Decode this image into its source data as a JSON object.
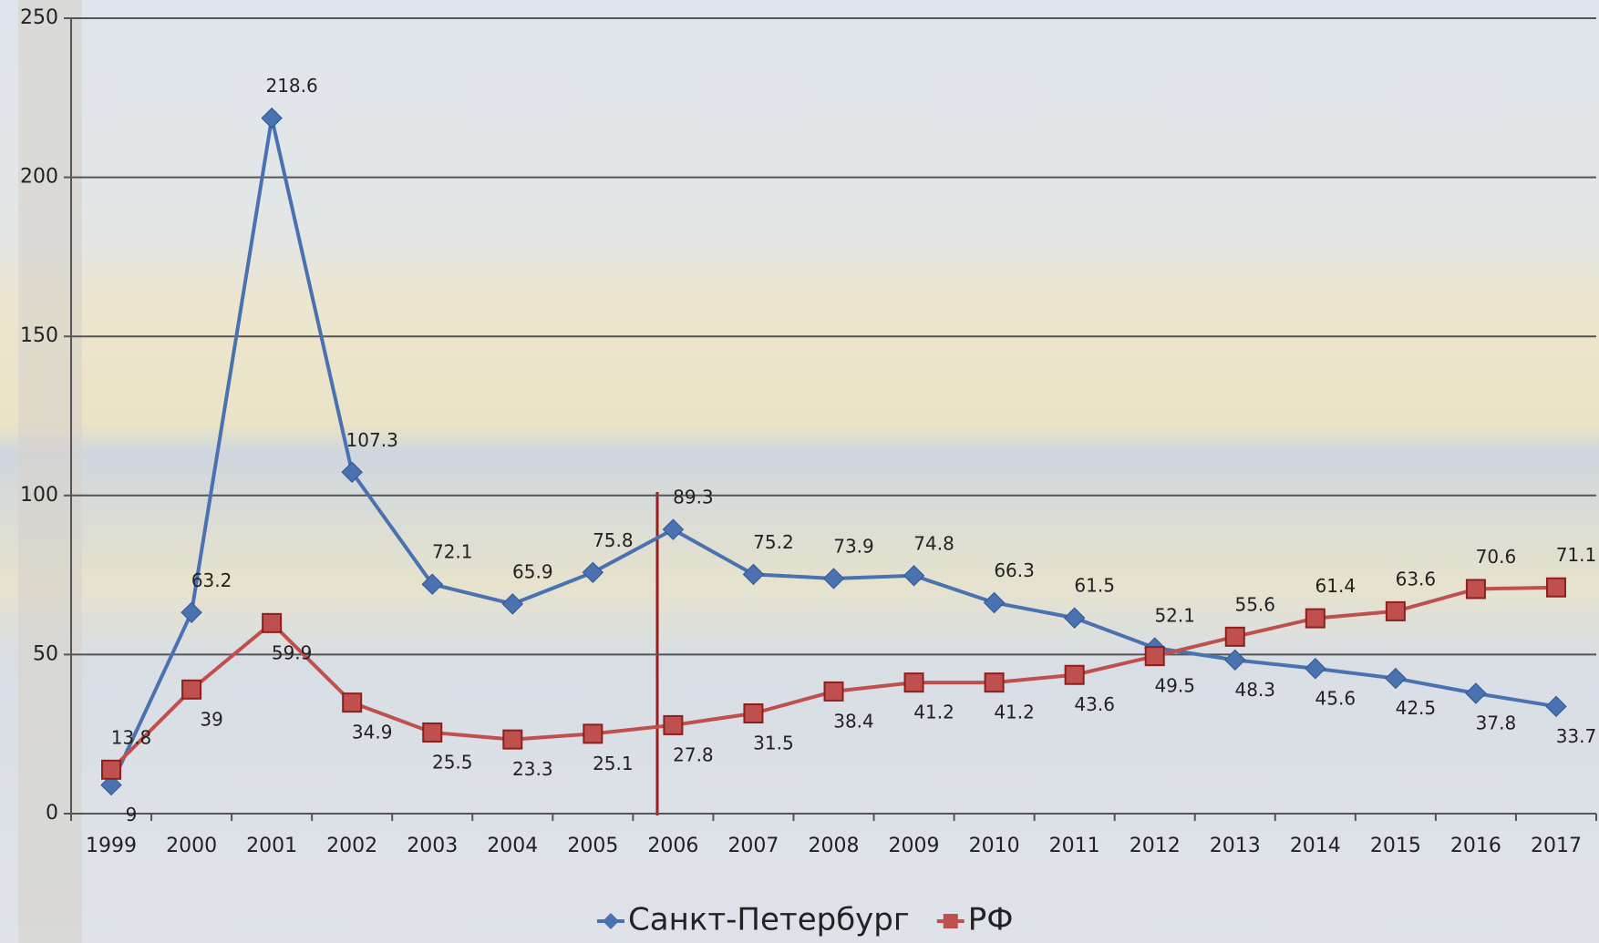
{
  "chart_data": {
    "type": "line",
    "categories": [
      "1999",
      "2000",
      "2001",
      "2002",
      "2003",
      "2004",
      "2005",
      "2006",
      "2007",
      "2008",
      "2009",
      "2010",
      "2011",
      "2012",
      "2013",
      "2014",
      "2015",
      "2016",
      "2017"
    ],
    "series": [
      {
        "name": "Санкт-Петербург",
        "color": "#4a72b0",
        "values": [
          9,
          63.2,
          218.6,
          107.3,
          72.1,
          65.9,
          75.8,
          89.3,
          75.2,
          73.9,
          74.8,
          66.3,
          61.5,
          52.1,
          48.3,
          45.6,
          42.5,
          37.8,
          33.7
        ]
      },
      {
        "name": "РФ",
        "color": "#c0504d",
        "values": [
          13.8,
          39,
          59.9,
          34.9,
          25.5,
          23.3,
          25.1,
          27.8,
          31.5,
          38.4,
          41.2,
          41.2,
          43.6,
          49.5,
          55.6,
          61.4,
          63.6,
          70.6,
          71.1
        ]
      }
    ],
    "ylim": [
      0,
      250
    ],
    "yticks": [
      0,
      50,
      100,
      150,
      200,
      250
    ],
    "grid": true,
    "legend": "bottom"
  }
}
